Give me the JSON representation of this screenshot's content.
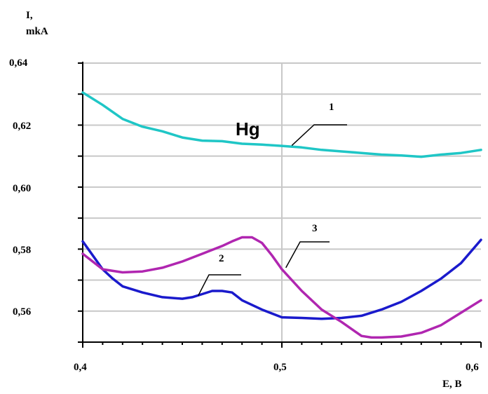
{
  "chart_data": {
    "type": "line",
    "ylabel_line1": "I,",
    "ylabel_line2": "mkA",
    "xlabel": "E, B",
    "annotation": "Hg",
    "xlim": [
      0.4,
      0.6
    ],
    "ylim": [
      0.55,
      0.64
    ],
    "x_ticks": [
      0.4,
      0.5,
      0.6
    ],
    "x_tick_labels": [
      "0,4",
      "0,5",
      "0,6"
    ],
    "y_ticks": [
      0.56,
      0.58,
      0.6,
      0.62,
      0.64
    ],
    "y_tick_labels": [
      "0,56",
      "0,58",
      "0,60",
      "0,62",
      "0,64"
    ],
    "grid": "horizontal every 0.01, vertical at 0.5",
    "series": [
      {
        "name": "1",
        "color": "#1fc6c6",
        "x": [
          0.4,
          0.41,
          0.42,
          0.43,
          0.44,
          0.45,
          0.46,
          0.47,
          0.48,
          0.49,
          0.5,
          0.51,
          0.52,
          0.53,
          0.54,
          0.55,
          0.56,
          0.57,
          0.58,
          0.59,
          0.6
        ],
        "y": [
          0.6305,
          0.6265,
          0.622,
          0.6195,
          0.618,
          0.616,
          0.615,
          0.6148,
          0.614,
          0.6137,
          0.6133,
          0.6128,
          0.612,
          0.6115,
          0.611,
          0.6105,
          0.6102,
          0.6098,
          0.6105,
          0.611,
          0.612
        ]
      },
      {
        "name": "2",
        "color": "#1a1acc",
        "x": [
          0.4,
          0.405,
          0.41,
          0.415,
          0.42,
          0.425,
          0.43,
          0.44,
          0.45,
          0.455,
          0.46,
          0.465,
          0.47,
          0.475,
          0.48,
          0.49,
          0.5,
          0.51,
          0.52,
          0.53,
          0.54,
          0.55,
          0.56,
          0.57,
          0.58,
          0.59,
          0.6
        ],
        "y": [
          0.5825,
          0.578,
          0.5735,
          0.5705,
          0.568,
          0.567,
          0.566,
          0.5645,
          0.564,
          0.5645,
          0.5655,
          0.5665,
          0.5665,
          0.566,
          0.5635,
          0.5605,
          0.558,
          0.5578,
          0.5575,
          0.5578,
          0.5585,
          0.5605,
          0.563,
          0.5665,
          0.5705,
          0.5755,
          0.583
        ]
      },
      {
        "name": "3",
        "color": "#b026b0",
        "x": [
          0.4,
          0.41,
          0.42,
          0.43,
          0.44,
          0.45,
          0.46,
          0.47,
          0.475,
          0.48,
          0.485,
          0.49,
          0.495,
          0.5,
          0.51,
          0.52,
          0.53,
          0.54,
          0.545,
          0.55,
          0.56,
          0.57,
          0.58,
          0.59,
          0.6
        ],
        "y": [
          0.5785,
          0.5735,
          0.5725,
          0.5728,
          0.574,
          0.576,
          0.5785,
          0.581,
          0.5825,
          0.5838,
          0.5838,
          0.582,
          0.578,
          0.5735,
          0.5665,
          0.5605,
          0.5565,
          0.552,
          0.5515,
          0.5515,
          0.5518,
          0.553,
          0.5555,
          0.5595,
          0.5635
        ]
      }
    ]
  }
}
